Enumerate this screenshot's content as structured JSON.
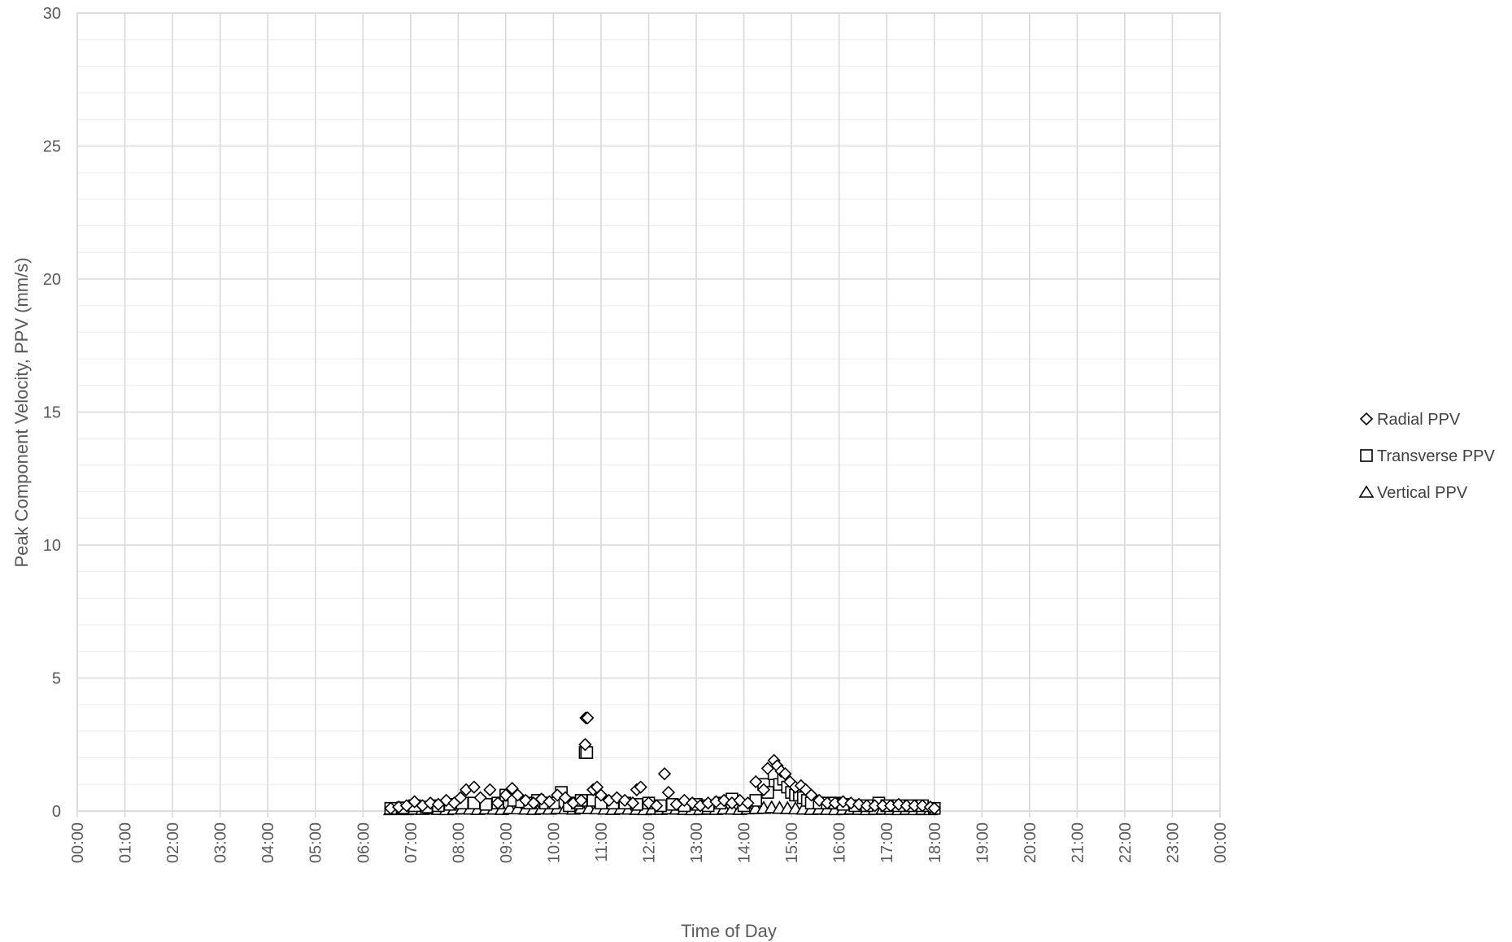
{
  "chart_data": {
    "type": "scatter",
    "title": "",
    "xlabel": "Time of Day",
    "ylabel": "Peak Component Velocity, PPV (mm/s)",
    "xlim": [
      "00:00",
      "24:00"
    ],
    "ylim": [
      0,
      30
    ],
    "y_major_step": 5,
    "y_minor_step": 1,
    "x_tick_labels": [
      "00:00",
      "01:00",
      "02:00",
      "03:00",
      "04:00",
      "05:00",
      "06:00",
      "07:00",
      "08:00",
      "09:00",
      "10:00",
      "11:00",
      "12:00",
      "13:00",
      "14:00",
      "15:00",
      "16:00",
      "17:00",
      "18:00",
      "19:00",
      "20:00",
      "21:00",
      "22:00",
      "23:00",
      "00:00"
    ],
    "y_tick_labels": [
      "0",
      "5",
      "10",
      "15",
      "20",
      "25",
      "30"
    ],
    "grid": true,
    "legend_position": "right",
    "series": [
      {
        "name": "Radial PPV",
        "marker": "diamond",
        "x": [
          "06:35",
          "06:45",
          "06:55",
          "07:05",
          "07:15",
          "07:25",
          "07:35",
          "07:45",
          "07:55",
          "08:03",
          "08:10",
          "08:20",
          "08:28",
          "08:40",
          "08:50",
          "09:00",
          "09:08",
          "09:15",
          "09:25",
          "09:35",
          "09:45",
          "09:55",
          "10:05",
          "10:15",
          "10:25",
          "10:35",
          "10:40",
          "10:41",
          "10:43",
          "10:50",
          "10:55",
          "11:00",
          "11:10",
          "11:20",
          "11:30",
          "11:40",
          "11:45",
          "11:50",
          "12:00",
          "12:10",
          "12:20",
          "12:25",
          "12:35",
          "12:45",
          "12:55",
          "13:05",
          "13:15",
          "13:25",
          "13:35",
          "13:45",
          "13:55",
          "14:05",
          "14:15",
          "14:25",
          "14:30",
          "14:38",
          "14:42",
          "14:47",
          "14:52",
          "14:58",
          "15:05",
          "15:12",
          "15:18",
          "15:25",
          "15:35",
          "15:45",
          "15:55",
          "16:05",
          "16:15",
          "16:25",
          "16:35",
          "16:45",
          "16:55",
          "17:05",
          "17:15",
          "17:25",
          "17:35",
          "17:45",
          "17:55",
          "18:00"
        ],
        "y": [
          0.1,
          0.15,
          0.2,
          0.35,
          0.2,
          0.3,
          0.25,
          0.4,
          0.3,
          0.5,
          0.8,
          0.9,
          0.5,
          0.8,
          0.3,
          0.6,
          0.85,
          0.6,
          0.4,
          0.3,
          0.45,
          0.35,
          0.6,
          0.5,
          0.3,
          0.4,
          2.5,
          3.5,
          3.5,
          0.8,
          0.9,
          0.6,
          0.4,
          0.5,
          0.4,
          0.3,
          0.8,
          0.9,
          0.3,
          0.2,
          1.4,
          0.7,
          0.25,
          0.4,
          0.3,
          0.2,
          0.3,
          0.35,
          0.4,
          0.3,
          0.4,
          0.3,
          1.1,
          0.8,
          1.6,
          1.9,
          1.7,
          1.5,
          1.4,
          1.1,
          0.9,
          0.95,
          0.8,
          0.6,
          0.4,
          0.3,
          0.3,
          0.35,
          0.3,
          0.25,
          0.2,
          0.2,
          0.2,
          0.2,
          0.25,
          0.2,
          0.2,
          0.2,
          0.15,
          0.1
        ]
      },
      {
        "name": "Transverse PPV",
        "marker": "square",
        "x": [
          "06:35",
          "06:50",
          "07:05",
          "07:20",
          "07:35",
          "07:50",
          "08:05",
          "08:20",
          "08:35",
          "08:50",
          "09:00",
          "09:10",
          "09:20",
          "09:30",
          "09:40",
          "09:50",
          "10:00",
          "10:10",
          "10:20",
          "10:30",
          "10:35",
          "10:40",
          "10:42",
          "10:50",
          "11:00",
          "11:15",
          "11:30",
          "11:45",
          "12:00",
          "12:15",
          "12:30",
          "12:45",
          "13:00",
          "13:15",
          "13:30",
          "13:45",
          "14:00",
          "14:15",
          "14:25",
          "14:30",
          "14:38",
          "14:45",
          "14:50",
          "14:55",
          "15:00",
          "15:05",
          "15:10",
          "15:15",
          "15:20",
          "15:25",
          "15:35",
          "15:45",
          "15:55",
          "16:05",
          "16:20",
          "16:35",
          "16:50",
          "17:00",
          "17:15",
          "17:30",
          "17:45",
          "18:00"
        ],
        "y": [
          0.1,
          0.12,
          0.2,
          0.15,
          0.2,
          0.25,
          0.3,
          0.3,
          0.25,
          0.3,
          0.6,
          0.4,
          0.35,
          0.3,
          0.4,
          0.3,
          0.3,
          0.7,
          0.2,
          0.3,
          0.4,
          2.2,
          2.2,
          0.4,
          0.3,
          0.3,
          0.3,
          0.25,
          0.3,
          0.2,
          0.25,
          0.2,
          0.25,
          0.2,
          0.3,
          0.45,
          0.2,
          0.4,
          1.0,
          0.7,
          1.4,
          1.0,
          1.2,
          0.9,
          0.7,
          0.6,
          0.6,
          0.5,
          0.4,
          0.3,
          0.3,
          0.3,
          0.3,
          0.25,
          0.2,
          0.2,
          0.3,
          0.2,
          0.2,
          0.2,
          0.2,
          0.1
        ]
      },
      {
        "name": "Vertical PPV",
        "marker": "triangle",
        "x": [
          "06:35",
          "06:45",
          "06:55",
          "07:05",
          "07:15",
          "07:25",
          "07:35",
          "07:45",
          "07:55",
          "08:05",
          "08:15",
          "08:25",
          "08:35",
          "08:45",
          "08:55",
          "09:05",
          "09:15",
          "09:25",
          "09:35",
          "09:45",
          "09:55",
          "10:05",
          "10:15",
          "10:25",
          "10:35",
          "10:45",
          "10:55",
          "11:05",
          "11:15",
          "11:25",
          "11:35",
          "11:45",
          "11:55",
          "12:05",
          "12:15",
          "12:25",
          "12:35",
          "12:45",
          "12:55",
          "13:05",
          "13:15",
          "13:25",
          "13:35",
          "13:45",
          "13:55",
          "14:05",
          "14:15",
          "14:25",
          "14:35",
          "14:45",
          "14:55",
          "15:05",
          "15:15",
          "15:25",
          "15:35",
          "15:45",
          "15:55",
          "16:05",
          "16:15",
          "16:25",
          "16:35",
          "16:45",
          "16:55",
          "17:05",
          "17:15",
          "17:25",
          "17:35",
          "17:45",
          "17:55"
        ],
        "y": [
          0.05,
          0.06,
          0.05,
          0.07,
          0.06,
          0.08,
          0.06,
          0.05,
          0.07,
          0.08,
          0.07,
          0.06,
          0.08,
          0.07,
          0.06,
          0.09,
          0.08,
          0.07,
          0.06,
          0.08,
          0.07,
          0.09,
          0.08,
          0.07,
          0.1,
          0.09,
          0.08,
          0.07,
          0.06,
          0.08,
          0.07,
          0.06,
          0.05,
          0.07,
          0.06,
          0.08,
          0.07,
          0.06,
          0.05,
          0.06,
          0.07,
          0.06,
          0.08,
          0.07,
          0.06,
          0.08,
          0.09,
          0.1,
          0.12,
          0.1,
          0.09,
          0.08,
          0.07,
          0.06,
          0.07,
          0.06,
          0.05,
          0.06,
          0.07,
          0.06,
          0.05,
          0.06,
          0.07,
          0.06,
          0.05,
          0.06,
          0.05,
          0.06,
          0.05
        ]
      }
    ]
  },
  "colors": {
    "gridline": "#d9d9d9",
    "minor_gridline": "#ebebeb",
    "marker_stroke": "#000000",
    "marker_fill": "#ffffff",
    "text": "#595959"
  }
}
